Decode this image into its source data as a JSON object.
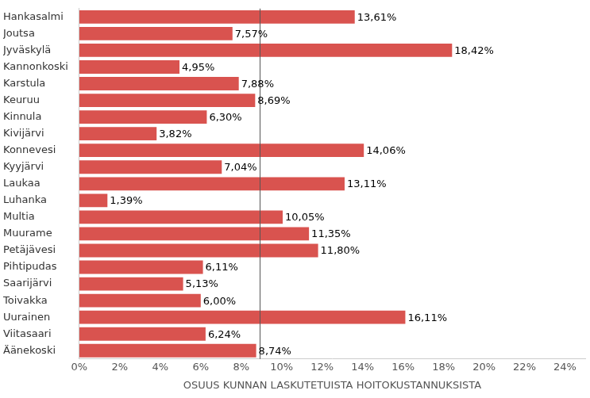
{
  "chart_data": {
    "type": "bar",
    "orientation": "horizontal",
    "x_label": "OSUUS KUNNAN LASKUTETUISTA HOITOKUSTANNUKSISTA",
    "categories": [
      "Hankasalmi",
      "Joutsa",
      "Jyväskylä",
      "Kannonkoski",
      "Karstula",
      "Keuruu",
      "Kinnula",
      "Kivijärvi",
      "Konnevesi",
      "Kyyjärvi",
      "Laukaa",
      "Luhanka",
      "Multia",
      "Muurame",
      "Petäjävesi",
      "Pihtipudas",
      "Saarijärvi",
      "Toivakka",
      "Uurainen",
      "Viitasaari",
      "Äänekoski"
    ],
    "values": [
      13.61,
      7.57,
      18.42,
      4.95,
      7.88,
      8.69,
      6.3,
      3.82,
      14.06,
      7.04,
      13.11,
      1.39,
      10.05,
      11.35,
      11.8,
      6.11,
      5.13,
      6.0,
      16.11,
      6.24,
      8.74
    ],
    "value_labels": [
      "13,61%",
      "7,57%",
      "18,42%",
      "4,95%",
      "7,88%",
      "8,69%",
      "6,30%",
      "3,82%",
      "14,06%",
      "7,04%",
      "13,11%",
      "1,39%",
      "10,05%",
      "11,35%",
      "11,80%",
      "6,11%",
      "5,13%",
      "6,00%",
      "16,11%",
      "6,24%",
      "8,74%"
    ],
    "data_labels": true,
    "color": "#d9534f",
    "reference_line": 8.9,
    "xlim": [
      0,
      25
    ],
    "xticks": [
      {
        "value": 0,
        "label": "0%"
      },
      {
        "value": 2,
        "label": "2%"
      },
      {
        "value": 4,
        "label": "4%"
      },
      {
        "value": 6,
        "label": "6%"
      },
      {
        "value": 8,
        "label": "8%"
      },
      {
        "value": 10,
        "label": "10%"
      },
      {
        "value": 12,
        "label": "12%"
      },
      {
        "value": 14,
        "label": "14%"
      },
      {
        "value": 16,
        "label": "16%"
      },
      {
        "value": 18,
        "label": "18%"
      },
      {
        "value": 20,
        "label": "20%"
      },
      {
        "value": 22,
        "label": "22%"
      },
      {
        "value": 24,
        "label": "24%"
      }
    ],
    "grid": false
  }
}
